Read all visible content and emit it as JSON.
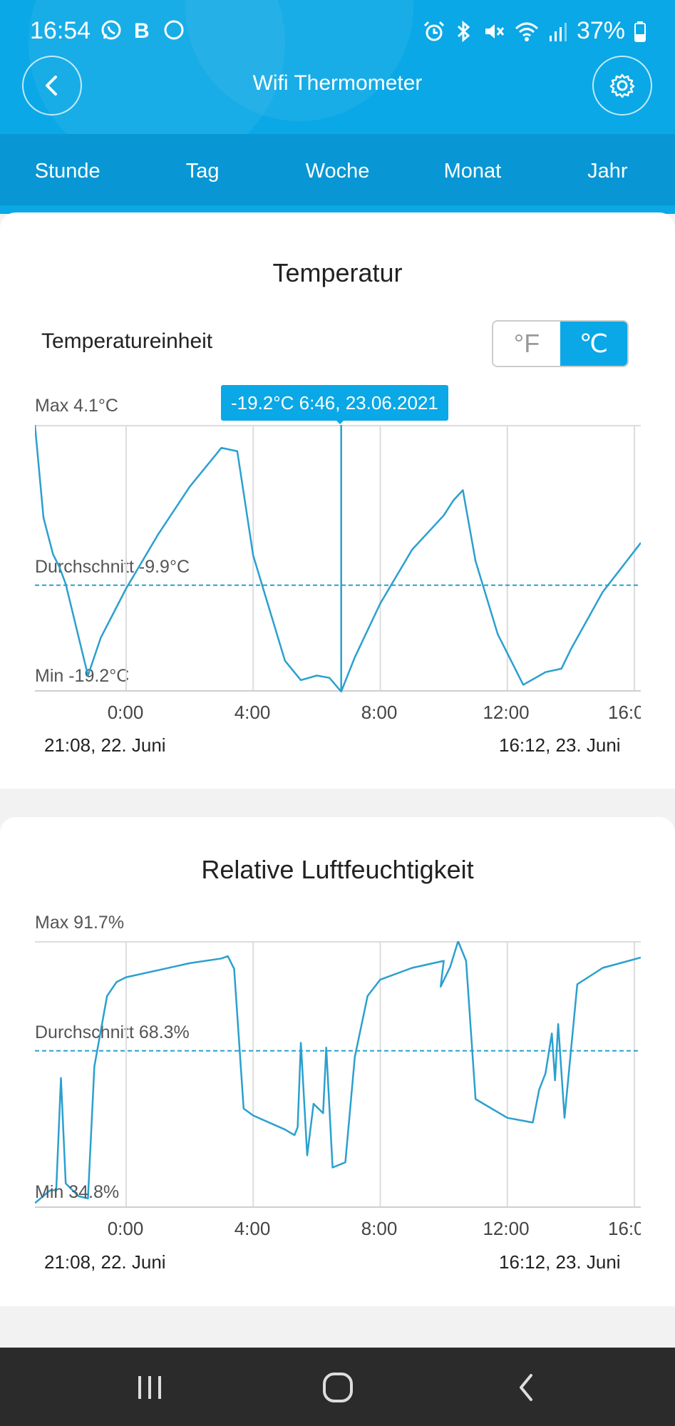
{
  "status_bar": {
    "time": "16:54",
    "battery": "37%"
  },
  "header": {
    "title": "Wifi Thermometer"
  },
  "tabs": [
    {
      "label": "Stunde"
    },
    {
      "label": "Tag"
    },
    {
      "label": "Woche"
    },
    {
      "label": "Monat"
    },
    {
      "label": "Jahr"
    }
  ],
  "temperature": {
    "title": "Temperatur",
    "unit_label": "Temperatureinheit",
    "unit_options": [
      "°F",
      "℃"
    ],
    "selected_unit": "℃",
    "max_label": "Max 4.1°C",
    "avg_label": "Durchschnitt -9.9°C",
    "min_label": "Min -19.2°C",
    "tooltip": "-19.2°C 6:46,  23.06.2021",
    "x_ticks": [
      "0:00",
      "4:00",
      "8:00",
      "12:00",
      "16:00"
    ],
    "range_start": "21:08,  22. Juni",
    "range_end": "16:12,  23. Juni"
  },
  "humidity": {
    "title": "Relative Luftfeuchtigkeit",
    "max_label": "Max 91.7%",
    "avg_label": "Durchschnitt 68.3%",
    "min_label": "Min 34.8%",
    "x_ticks": [
      "0:00",
      "4:00",
      "8:00",
      "12:00",
      "16:00"
    ],
    "range_start": "21:08,  22. Juni",
    "range_end": "16:12,  23. Juni"
  },
  "chart_data": [
    {
      "type": "line",
      "title": "Temperatur",
      "x_unit": "hours since 0:00 (23.06.2021)",
      "xlim": [
        -2.87,
        16.2
      ],
      "ylim": [
        -19.2,
        4.1
      ],
      "average": -9.9,
      "highlight": {
        "x": 6.77,
        "y": -19.2
      },
      "color": "#2aa0cf",
      "x": [
        -2.87,
        -2.6,
        -2.3,
        -2.1,
        -1.9,
        -1.2,
        -0.8,
        0,
        1,
        2,
        3,
        3.5,
        4,
        5,
        5.5,
        6,
        6.4,
        6.77,
        7.2,
        8,
        9,
        10,
        10.3,
        10.6,
        11,
        11.7,
        12.5,
        13.2,
        13.7,
        14,
        15,
        16.2
      ],
      "y": [
        4.1,
        -4,
        -7.2,
        -8.3,
        -9.8,
        -17.8,
        -14.5,
        -10.2,
        -5.5,
        -1.3,
        2.1,
        1.8,
        -7.3,
        -16.5,
        -18.2,
        -17.8,
        -18,
        -19.2,
        -16.2,
        -11.5,
        -6.8,
        -3.8,
        -2.5,
        -1.6,
        -7.8,
        -14.2,
        -18.6,
        -17.5,
        -17.2,
        -15.5,
        -10.5,
        -6.2
      ]
    },
    {
      "type": "line",
      "title": "Relative Luftfeuchtigkeit",
      "x_unit": "hours since 0:00 (23.06.2021)",
      "xlim": [
        -2.87,
        16.2
      ],
      "ylim": [
        34.8,
        91.7
      ],
      "average": 68.3,
      "color": "#2aa0cf",
      "x": [
        -2.87,
        -2.4,
        -2.2,
        -2.05,
        -1.9,
        -1.5,
        -1.2,
        -1,
        -0.6,
        -0.3,
        0,
        1,
        2,
        3,
        3.2,
        3.4,
        3.7,
        4,
        5,
        5.3,
        5.4,
        5.5,
        5.7,
        5.9,
        6.2,
        6.3,
        6.5,
        6.9,
        7.2,
        7.6,
        8,
        9,
        10,
        9.9,
        10.2,
        10.45,
        10.7,
        11,
        12,
        12.8,
        13,
        13.2,
        13.4,
        13.5,
        13.6,
        13.8,
        14.2,
        15,
        16.2
      ],
      "y": [
        35.8,
        38.5,
        38.6,
        62.5,
        40,
        37.3,
        36.8,
        65,
        80,
        83,
        84,
        85.5,
        87,
        88,
        88.5,
        85.8,
        56,
        54.5,
        51.5,
        50.3,
        52,
        70,
        46,
        57,
        55,
        69,
        43.4,
        44.5,
        67,
        80,
        83.5,
        86,
        87.5,
        82,
        86.2,
        91.7,
        87.5,
        58,
        54,
        53,
        60,
        63.5,
        72,
        62,
        74,
        54,
        82.5,
        86,
        88.2
      ]
    }
  ]
}
